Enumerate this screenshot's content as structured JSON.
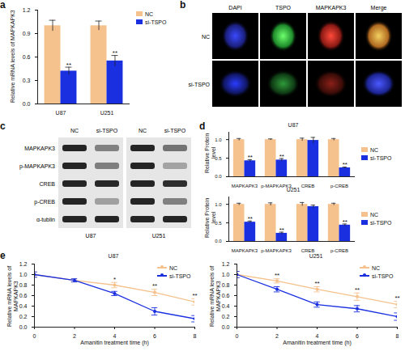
{
  "chart_data": [
    {
      "panel": "a",
      "type": "bar",
      "ylabel": "Relative mRNA levels of MAPKAPK3",
      "categories": [
        "U87",
        "U251"
      ],
      "series": [
        {
          "name": "NC",
          "color": "#f5c18c",
          "values": [
            1.0,
            1.0
          ],
          "errors": [
            0.07,
            0.06
          ]
        },
        {
          "name": "si-TSPO",
          "color": "#1a2fe0",
          "values": [
            0.42,
            0.55
          ],
          "errors": [
            0.05,
            0.07
          ],
          "significance": [
            "**",
            "**"
          ]
        }
      ],
      "ylim": [
        0,
        1.2
      ],
      "yticks": [
        {
          "value": 0,
          "label": "0.0"
        },
        {
          "value": 0.3,
          "label": "0.3"
        },
        {
          "value": 0.6,
          "label": "0.6"
        },
        {
          "value": 0.9,
          "label": "0.9"
        },
        {
          "value": 1.2,
          "label": "1.2"
        }
      ],
      "legend": "top-right"
    },
    {
      "panel": "d",
      "type": "bar",
      "title": "U87",
      "ylabel": "Relative Protein level",
      "categories": [
        "MAPKAPK3",
        "p-MAPKAPK3",
        "CREB",
        "p-CREB"
      ],
      "series": [
        {
          "name": "NC",
          "color": "#f5c18c",
          "values": [
            1,
            1,
            1,
            1
          ],
          "errors": [
            0.03,
            0.02,
            0.04,
            0.03
          ]
        },
        {
          "name": "si-TSPO",
          "color": "#1a2fe0",
          "values": [
            0.43,
            0.45,
            0.98,
            0.24
          ],
          "errors": [
            0.03,
            0.04,
            0.08,
            0.02
          ],
          "significance": [
            "**",
            "**",
            null,
            "**"
          ]
        }
      ],
      "ylim": [
        0,
        1.2
      ],
      "yticks": [
        {
          "value": 0,
          "label": "0.0"
        },
        {
          "value": 0.5,
          "label": "0.5"
        },
        {
          "value": 1,
          "label": "1.0"
        }
      ],
      "legend": "right"
    },
    {
      "panel": "d",
      "type": "bar",
      "title": "U251",
      "ylabel": "Relative Protein level",
      "categories": [
        "MAPKAPK3",
        "p-MAPKAPK3",
        "CREB",
        "p-CREB"
      ],
      "series": [
        {
          "name": "NC",
          "color": "#f5c18c",
          "values": [
            1,
            1,
            1,
            1
          ],
          "errors": [
            0.03,
            0.04,
            0.05,
            0.03
          ]
        },
        {
          "name": "si-TSPO",
          "color": "#1a2fe0",
          "values": [
            0.52,
            0.22,
            0.94,
            0.44
          ],
          "errors": [
            0.03,
            0.03,
            0.04,
            0.03
          ],
          "significance": [
            "**",
            "**",
            null,
            "**"
          ]
        }
      ],
      "ylim": [
        0,
        1.2
      ],
      "yticks": [
        {
          "value": 0,
          "label": "0.0"
        },
        {
          "value": 0.5,
          "label": "0.5"
        },
        {
          "value": 1,
          "label": "1.0"
        }
      ],
      "legend": "right"
    },
    {
      "panel": "e",
      "type": "line",
      "title": "U87",
      "xlabel": "Amanitin treatment time (h)",
      "ylabel": "Relative mRNA levels of MAPKAPK3",
      "x": [
        0,
        2,
        4,
        6,
        8
      ],
      "series": [
        {
          "name": "NC",
          "color": "#f5c18c",
          "marker": "circle",
          "values": [
            1.0,
            0.89,
            0.8,
            0.66,
            0.48
          ],
          "errors": [
            0.05,
            0.03,
            0.05,
            0.06,
            0.06
          ]
        },
        {
          "name": "si-TSPO",
          "color": "#1a2fe0",
          "marker": "circle",
          "values": [
            1.0,
            0.89,
            0.64,
            0.3,
            0.16
          ],
          "errors": [
            0.05,
            0.03,
            0.04,
            0.07,
            0.06
          ]
        }
      ],
      "significance": [
        null,
        null,
        "*",
        "**",
        "**"
      ],
      "xlim": [
        0,
        8
      ],
      "xticks": [
        0,
        2,
        4,
        6,
        8
      ],
      "ylim": [
        0,
        1.2
      ],
      "yticks": [
        {
          "value": 0,
          "label": "0.0"
        },
        {
          "value": 0.2,
          "label": "0.2"
        },
        {
          "value": 0.4,
          "label": "0.4"
        },
        {
          "value": 0.6,
          "label": "0.6"
        },
        {
          "value": 0.8,
          "label": "0.8"
        },
        {
          "value": 1,
          "label": "1.0"
        },
        {
          "value": 1.2,
          "label": "1.2"
        }
      ],
      "legend": "top-right"
    },
    {
      "panel": "e",
      "type": "line",
      "title": "U251",
      "xlabel": "Amanitin treatment time (h)",
      "ylabel": "Relative mRNA levels of MAPKAPK3",
      "x": [
        0,
        2,
        4,
        6,
        8
      ],
      "series": [
        {
          "name": "NC",
          "color": "#f5c18c",
          "marker": "circle",
          "values": [
            1.0,
            0.88,
            0.72,
            0.58,
            0.43
          ],
          "errors": [
            0.06,
            0.04,
            0.05,
            0.07,
            0.06
          ]
        },
        {
          "name": "si-TSPO",
          "color": "#1a2fe0",
          "marker": "circle",
          "values": [
            1.0,
            0.72,
            0.43,
            0.35,
            0.2
          ],
          "errors": [
            0.06,
            0.05,
            0.05,
            0.06,
            0.07
          ]
        }
      ],
      "significance": [
        null,
        "**",
        "**",
        "**",
        "**"
      ],
      "xlim": [
        0,
        8
      ],
      "xticks": [
        0,
        2,
        4,
        6,
        8
      ],
      "ylim": [
        0,
        1.2
      ],
      "yticks": [
        {
          "value": 0,
          "label": "0.0"
        },
        {
          "value": 0.2,
          "label": "0.2"
        },
        {
          "value": 0.4,
          "label": "0.4"
        },
        {
          "value": 0.6,
          "label": "0.6"
        },
        {
          "value": 0.8,
          "label": "0.8"
        },
        {
          "value": 1,
          "label": "1.0"
        },
        {
          "value": 1.2,
          "label": "1.2"
        }
      ],
      "legend": "top-right"
    }
  ],
  "images": {
    "panel": "b",
    "columns": [
      "DAPI",
      "TSPO",
      "MAPKAPK3",
      "Merge"
    ],
    "rows": [
      "NC",
      "si-TSPO"
    ]
  },
  "blot": {
    "panel": "c",
    "rows": [
      "MAPKAPK3",
      "p-MAPKAPK3",
      "CREB",
      "p-CREB",
      "α-tublin"
    ],
    "lanes": [
      "NC",
      "si-TSPO",
      "NC",
      "si-TSPO"
    ],
    "groups": [
      "U87",
      "U251"
    ]
  }
}
